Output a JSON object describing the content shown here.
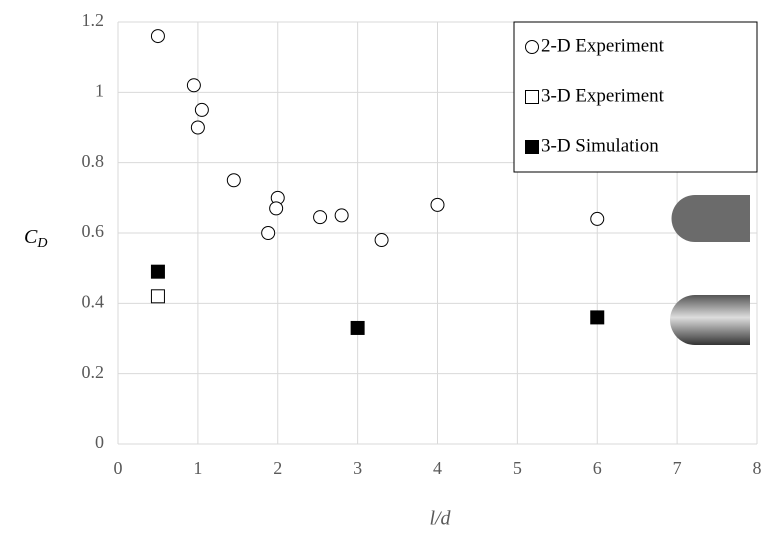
{
  "chart_data": {
    "type": "scatter",
    "x_label": "l/d",
    "y_label": {
      "main": "C",
      "sub": "D"
    },
    "xlim": [
      0,
      8
    ],
    "xticks": [
      0,
      1,
      2,
      3,
      4,
      5,
      6,
      7,
      8
    ],
    "ylim": [
      0,
      1.2
    ],
    "yticks": [
      0,
      0.2,
      0.4,
      0.6,
      0.8,
      1,
      1.2
    ],
    "grid": true,
    "legend": "upper right",
    "series": [
      {
        "name": "2-D Experiment",
        "marker": "circle",
        "color": "#000000",
        "filled": false,
        "x": [
          0.5,
          0.95,
          1.05,
          1.0,
          1.45,
          2.0,
          1.98,
          1.88,
          2.53,
          2.8,
          3.3,
          4.0,
          6.0
        ],
        "values": [
          1.16,
          1.02,
          0.95,
          0.9,
          0.75,
          0.7,
          0.67,
          0.6,
          0.645,
          0.65,
          0.58,
          0.68,
          0.64
        ]
      },
      {
        "name": "3-D Experiment",
        "marker": "square",
        "color": "#000000",
        "filled": false,
        "x": [
          0.5
        ],
        "values": [
          0.42
        ]
      },
      {
        "name": "3-D Simulation",
        "marker": "square",
        "color": "#000000",
        "filled": true,
        "x": [
          0.5,
          3.0,
          6.0
        ],
        "values": [
          0.49,
          0.33,
          0.36
        ]
      }
    ]
  }
}
